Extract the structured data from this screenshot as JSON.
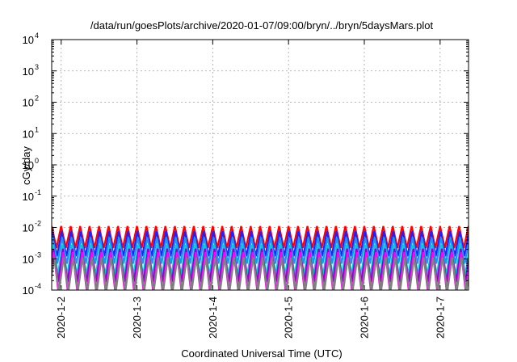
{
  "chart_data": {
    "type": "line",
    "title": "/data/run/goesPlots/archive/2020-01-07/09:00/bryn/../bryn/5daysMars.plot",
    "xlabel": "Coordinated Universal Time (UTC)",
    "ylabel": "cGy/day",
    "y_scale": "log",
    "ylim": [
      0.0001,
      10000
    ],
    "xlim": [
      "2020-01-01T21:00",
      "2020-01-07T09:00"
    ],
    "y_ticks": [
      {
        "value": 0.0001,
        "base": "10",
        "exp": "-4"
      },
      {
        "value": 0.001,
        "base": "10",
        "exp": "-3"
      },
      {
        "value": 0.01,
        "base": "10",
        "exp": "-2"
      },
      {
        "value": 0.1,
        "base": "10",
        "exp": "-1"
      },
      {
        "value": 1,
        "base": "10",
        "exp": "0"
      },
      {
        "value": 10,
        "base": "10",
        "exp": "1"
      },
      {
        "value": 100,
        "base": "10",
        "exp": "2"
      },
      {
        "value": 1000,
        "base": "10",
        "exp": "3"
      },
      {
        "value": 10000,
        "base": "10",
        "exp": "4"
      }
    ],
    "x_ticks": [
      {
        "value": "2020-01-02T00:00",
        "label": "2020-1-2"
      },
      {
        "value": "2020-01-03T00:00",
        "label": "2020-1-3"
      },
      {
        "value": "2020-01-04T00:00",
        "label": "2020-1-4"
      },
      {
        "value": "2020-01-05T00:00",
        "label": "2020-1-5"
      },
      {
        "value": "2020-01-06T00:00",
        "label": "2020-1-6"
      },
      {
        "value": "2020-01-07T00:00",
        "label": "2020-1-7"
      }
    ],
    "grid": true,
    "legend": "none",
    "sawtooth_period_hours": 3,
    "series": [
      {
        "color": "#ff0000",
        "peak": 0.011,
        "trough": 0.0022,
        "phase_hours": 0.0
      },
      {
        "color": "#2020ff",
        "peak": 0.0075,
        "trough": 0.0012,
        "phase_hours": 0.15
      },
      {
        "color": "#1e90ff",
        "peak": 0.0048,
        "trough": 0.0007,
        "phase_hours": 0.3
      },
      {
        "color": "#00ced1",
        "peak": 0.0028,
        "trough": 0.0003,
        "phase_hours": 0.45
      },
      {
        "color": "#9400d3",
        "peak": 0.0021,
        "trough": 0.00018,
        "phase_hours": 0.55
      },
      {
        "color": "#ff00ff",
        "peak": 0.0016,
        "trough": 8e-05,
        "phase_hours": 0.65
      },
      {
        "color": "#808080",
        "peak": 0.0011,
        "trough": 9e-05,
        "phase_hours": 0.8
      }
    ]
  }
}
